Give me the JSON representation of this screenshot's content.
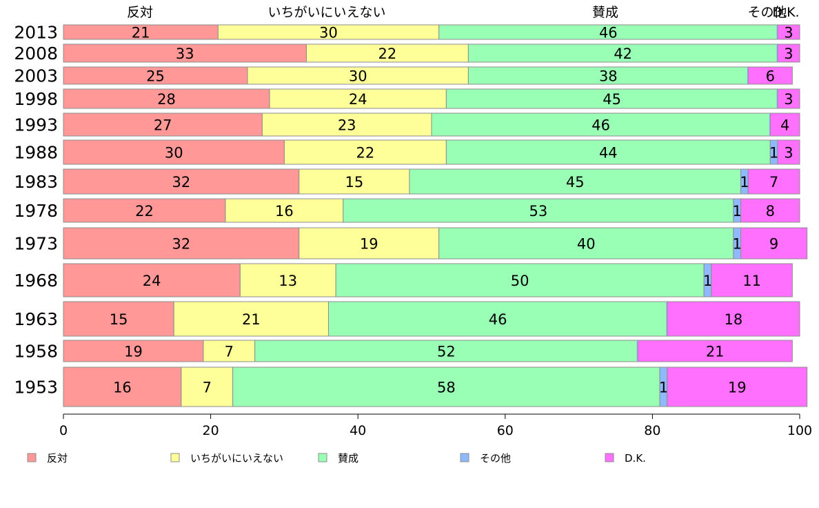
{
  "chart_data": {
    "type": "bar",
    "orientation": "horizontal",
    "stacked": true,
    "title": "",
    "xlabel": "",
    "ylabel": "",
    "xlim": [
      0,
      100
    ],
    "x_ticks": [
      "0",
      "20",
      "40",
      "60",
      "80",
      "100"
    ],
    "categories": [
      "2013",
      "2008",
      "2003",
      "1998",
      "1993",
      "1988",
      "1983",
      "1978",
      "1973",
      "1968",
      "1963",
      "1958",
      "1953"
    ],
    "top_labels": [
      "反対",
      "いちがいにいえない",
      "賛成",
      "その他",
      "D.K."
    ],
    "series": [
      {
        "name": "反対",
        "color": "#ff9896",
        "values": [
          21,
          33,
          25,
          28,
          27,
          30,
          32,
          22,
          32,
          24,
          15,
          19,
          16
        ]
      },
      {
        "name": "いちがいにいえない",
        "color": "#ffff99",
        "values": [
          30,
          22,
          30,
          24,
          23,
          22,
          15,
          16,
          19,
          13,
          21,
          7,
          7
        ]
      },
      {
        "name": "賛成",
        "color": "#98ffb4",
        "values": [
          46,
          42,
          38,
          45,
          46,
          44,
          45,
          53,
          40,
          50,
          46,
          52,
          58
        ]
      },
      {
        "name": "その他",
        "color": "#8fb9ff",
        "values": [
          0,
          0,
          0,
          0,
          0,
          1,
          1,
          1,
          1,
          1,
          0,
          0,
          1
        ]
      },
      {
        "name": "D.K.",
        "color": "#ff70ff",
        "values": [
          3,
          3,
          6,
          3,
          4,
          3,
          7,
          8,
          9,
          11,
          18,
          21,
          19
        ]
      }
    ],
    "legend": {
      "position": "bottom",
      "items": [
        "反対",
        "いちがいにいえない",
        "賛成",
        "その他",
        "D.K."
      ]
    }
  }
}
